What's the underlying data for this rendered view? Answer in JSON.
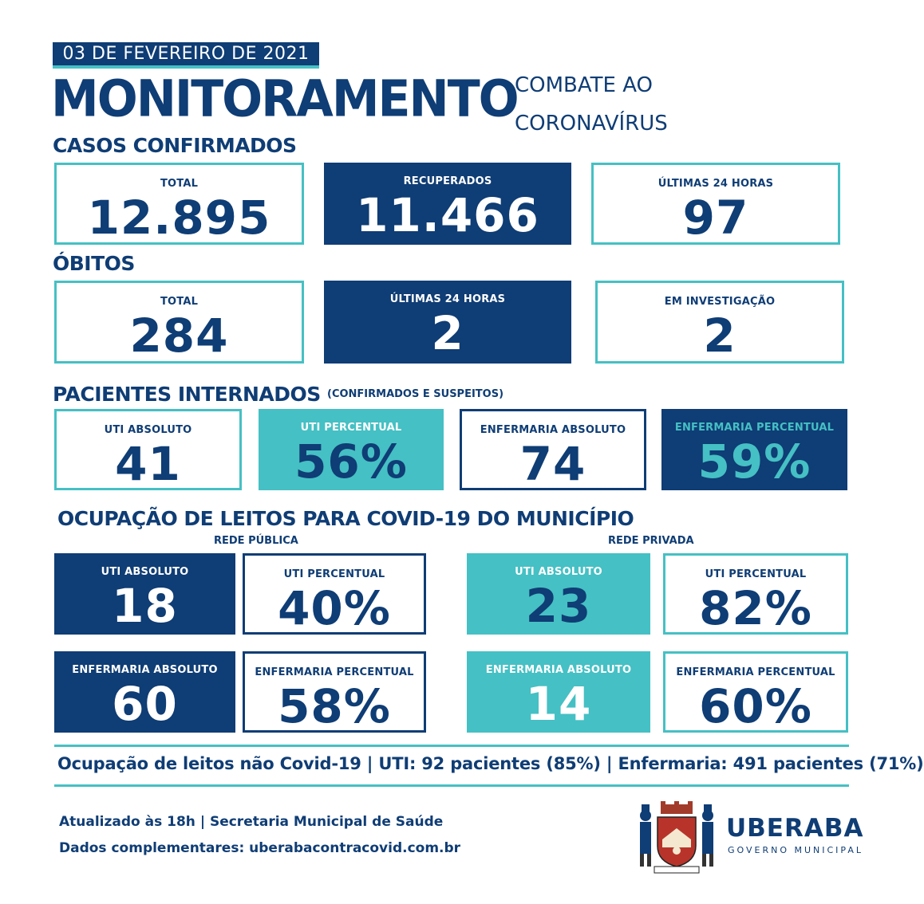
{
  "date": "03 DE FEVEREIRO DE 2021",
  "title": "MONITORAMENTO",
  "subtitle_line1": "COMBATE AO",
  "subtitle_line2": "CORONAVÍRUS",
  "casos": {
    "title": "CASOS CONFIRMADOS",
    "total_label": "TOTAL",
    "total_value": "12.895",
    "recuperados_label": "RECUPERADOS",
    "recuperados_value": "11.466",
    "ultimas_label": "ÚLTIMAS 24 HORAS",
    "ultimas_value": "97"
  },
  "obitos": {
    "title": "ÓBITOS",
    "total_label": "TOTAL",
    "total_value": "284",
    "ultimas_label": "ÚLTIMAS 24 HORAS",
    "ultimas_value": "2",
    "investigacao_label": "EM INVESTIGAÇÃO",
    "investigacao_value": "2"
  },
  "internados": {
    "title": "PACIENTES INTERNADOS",
    "note": "(CONFIRMADOS E SUSPEITOS)",
    "uti_abs_label": "UTI ABSOLUTO",
    "uti_abs_value": "41",
    "uti_pct_label": "UTI PERCENTUAL",
    "uti_pct_value": "56%",
    "enf_abs_label": "ENFERMARIA ABSOLUTO",
    "enf_abs_value": "74",
    "enf_pct_label": "ENFERMARIA PERCENTUAL",
    "enf_pct_value": "59%"
  },
  "ocupacao": {
    "title": "OCUPAÇÃO DE LEITOS PARA COVID-19 DO MUNICÍPIO",
    "publica": {
      "label": "REDE PÚBLICA",
      "uti_abs_label": "UTI ABSOLUTO",
      "uti_abs_value": "18",
      "uti_pct_label": "UTI PERCENTUAL",
      "uti_pct_value": "40%",
      "enf_abs_label": "ENFERMARIA ABSOLUTO",
      "enf_abs_value": "60",
      "enf_pct_label": "ENFERMARIA PERCENTUAL",
      "enf_pct_value": "58%"
    },
    "privada": {
      "label": "REDE PRIVADA",
      "uti_abs_label": "UTI ABSOLUTO",
      "uti_abs_value": "23",
      "uti_pct_label": "UTI PERCENTUAL",
      "uti_pct_value": "82%",
      "enf_abs_label": "ENFERMARIA ABSOLUTO",
      "enf_abs_value": "14",
      "enf_pct_label": "ENFERMARIA PERCENTUAL",
      "enf_pct_value": "60%"
    }
  },
  "nao_covid": "Ocupação de leitos não Covid-19 | UTI: 92 pacientes (85%) | Enfermaria: 491 pacientes (71%)",
  "atualizado": "Atualizado às 18h | Secretaria Municipal de Saúde",
  "dados": "Dados complementares: uberabacontracovid.com.br",
  "logo": {
    "name": "UBERABA",
    "sub": "GOVERNO MUNICIPAL",
    "icon": "city-coat-of-arms-icon"
  },
  "colors": {
    "navy": "#0f3d75",
    "teal": "#45c0c4"
  }
}
